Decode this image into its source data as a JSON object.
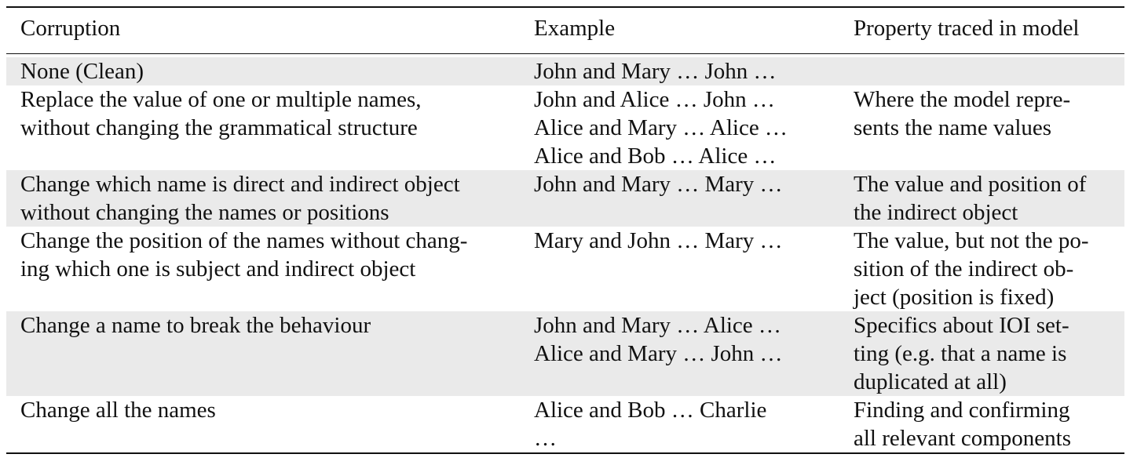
{
  "table": {
    "headers": [
      "Corruption",
      "Example",
      "Property traced in model"
    ],
    "rows": [
      {
        "corruption": "None (Clean)",
        "example": "John and Mary … John …",
        "property": ""
      },
      {
        "corruption": "Replace the value of one or multiple names,\nwithout changing the grammatical structure",
        "example": "John and Alice …  John …\nAlice and Mary …  Alice …\nAlice and Bob …  Alice …",
        "property": "Where the model repre-\nsents the name values"
      },
      {
        "corruption": "Change which name is direct and indirect object\nwithout changing the names or positions",
        "example": "John and Mary …  Mary …",
        "property": "The value and position of\nthe indirect object"
      },
      {
        "corruption": "Change the position of the names without chang-\ning which one is subject and indirect object",
        "example": "Mary and John …  Mary …",
        "property": "The value, but not the po-\nsition of the indirect ob-\nject (position is fixed)"
      },
      {
        "corruption": "Change a name to break the behaviour",
        "example": "John and Mary …  Alice …\nAlice and Mary …  John …",
        "property": "Specifics about IOI set-\nting (e.g. that a name is\nduplicated at all)"
      },
      {
        "corruption": "Change all the names",
        "example": "Alice and Bob …   Charlie\n…",
        "property": "Finding and confirming\nall relevant components"
      }
    ]
  }
}
